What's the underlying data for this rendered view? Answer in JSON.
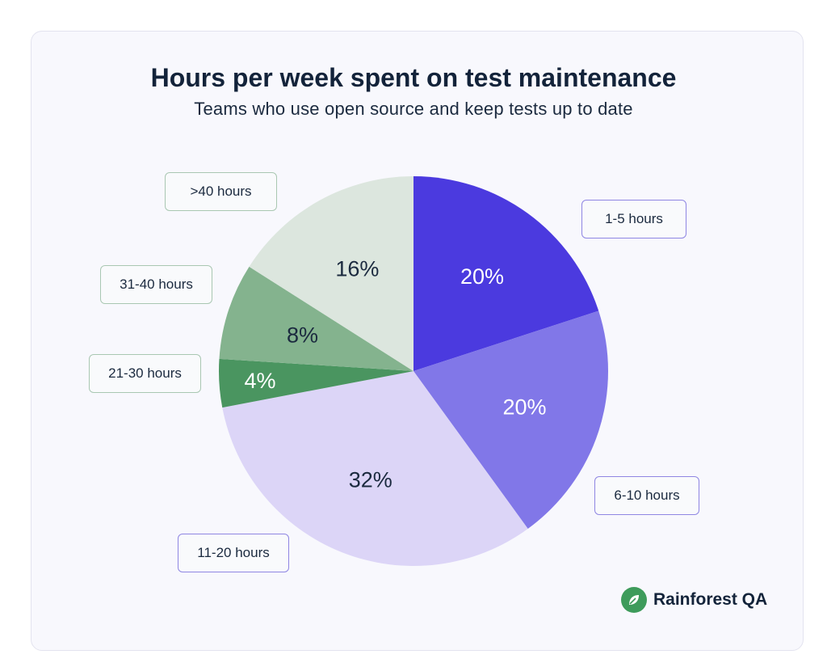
{
  "chart_data": {
    "type": "pie",
    "title": "Hours per week spent on test maintenance",
    "subtitle": "Teams who use open source and keep tests up to date",
    "slices": [
      {
        "label": "1-5 hours",
        "value": 20,
        "value_label": "20%",
        "color": "#4b3adf",
        "text_color": "#ffffff",
        "border": "#8f86e3"
      },
      {
        "label": "6-10 hours",
        "value": 20,
        "value_label": "20%",
        "color": "#8177e8",
        "text_color": "#ffffff",
        "border": "#8f86e3"
      },
      {
        "label": "11-20 hours",
        "value": 32,
        "value_label": "32%",
        "color": "#dcd5f7",
        "text_color": "#1b2a3f",
        "border": "#8f86e3"
      },
      {
        "label": "21-30 hours",
        "value": 4,
        "value_label": "4%",
        "color": "#4a9560",
        "text_color": "#ffffff",
        "border": "#a9c7b2"
      },
      {
        "label": "31-40 hours",
        "value": 8,
        "value_label": "8%",
        "color": "#84b38e",
        "text_color": "#1b2a3f",
        "border": "#a9c7b2"
      },
      {
        "label": ">40 hours",
        "value": 16,
        "value_label": "16%",
        "color": "#dce6de",
        "text_color": "#1b2a3f",
        "border": "#a9c7b2"
      }
    ],
    "start_angle_deg": 0,
    "direction": "clockwise"
  },
  "brand": {
    "name": "Rainforest QA",
    "logo_icon": "leaf-icon",
    "logo_color": "#3e9b5b"
  }
}
